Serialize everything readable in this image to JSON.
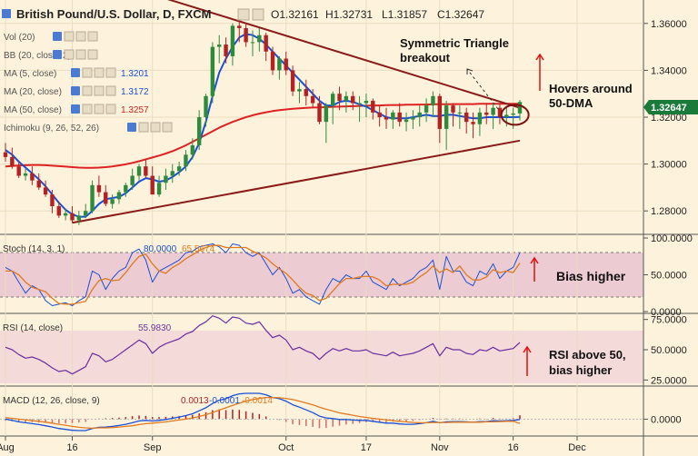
{
  "header": {
    "symbol_title": "British Pound/U.S. Dollar, D, FXCM",
    "ohlc": {
      "o": "O1.32161",
      "h": "H1.32731",
      "l": "L1.31857",
      "c": "C1.32647"
    }
  },
  "indicators": [
    {
      "label": "Vol (20)",
      "value": "",
      "color": "#999999"
    },
    {
      "label": "BB (20, close, 2)",
      "value": "",
      "color": "#999999"
    },
    {
      "label": "MA (5, close)",
      "value": "1.3201",
      "color": "#1a4fd6"
    },
    {
      "label": "MA (20, close)",
      "value": "1.3172",
      "color": "#1a4fd6"
    },
    {
      "label": "MA (50, close)",
      "value": "1.3257",
      "color": "#cc2222"
    },
    {
      "label": "Ichimoku (9, 26, 52, 26)",
      "value": "",
      "color": "#999999"
    }
  ],
  "annotations": {
    "triangle": "Symmetric Triangle\nbreakout",
    "hovers": "Hovers around\n50-DMA",
    "stoch_bias": "Bias higher",
    "rsi_note": "RSI above 50,\nbias higher"
  },
  "price_panel": {
    "y_ticks": [
      "1.36000",
      "1.34000",
      "1.32000",
      "1.30000",
      "1.28000"
    ],
    "last_price": "1.32647",
    "last_price_color": "#1a7a3a"
  },
  "stoch_panel": {
    "label": "Stoch (14, 3, 1)",
    "k_value": "80.0000",
    "d_value": "65.5674",
    "y_ticks": [
      "100.0000",
      "50.0000",
      "0.0000"
    ]
  },
  "rsi_panel": {
    "label": "RSI (14, close)",
    "value": "55.9830",
    "y_ticks": [
      "75.0000",
      "50.0000",
      "25.0000"
    ]
  },
  "macd_panel": {
    "label": "MACD (12, 26, close, 9)",
    "hist_value": "0.0013",
    "macd_value": "-0.0001",
    "signal_value": "-0.0014",
    "y_ticks": [
      "0.0000"
    ]
  },
  "x_axis": {
    "labels": [
      "Aug",
      "16",
      "Sep",
      "Oct",
      "17",
      "Nov",
      "16",
      "Dec"
    ]
  },
  "colors": {
    "background": "#fdf3dc",
    "bull": "#2e8b3e",
    "bear": "#b22222",
    "ma_fast": "#1a4fd6",
    "ma_slow": "#dd2222",
    "trendline": "#8b1a1a",
    "annotation_arrow": "#e01010",
    "stoch_band": "#eccbd2",
    "rsi_band": "#f5dada"
  },
  "chart_data": {
    "type": "candlestick",
    "x": [
      "Aug 2",
      "Aug 3",
      "Aug 6",
      "Aug 7",
      "Aug 8",
      "Aug 9",
      "Aug 10",
      "Aug 13",
      "Aug 14",
      "Aug 15",
      "Aug 16",
      "Aug 17",
      "Aug 20",
      "Aug 21",
      "Aug 22",
      "Aug 23",
      "Aug 24",
      "Aug 27",
      "Aug 28",
      "Aug 29",
      "Aug 30",
      "Aug 31",
      "Sep 3",
      "Sep 4",
      "Sep 5",
      "Sep 6",
      "Sep 7",
      "Sep 10",
      "Sep 11",
      "Sep 12",
      "Sep 13",
      "Sep 14",
      "Sep 17",
      "Sep 18",
      "Sep 19",
      "Sep 20",
      "Sep 21",
      "Sep 24",
      "Sep 25",
      "Sep 26",
      "Sep 27",
      "Sep 28",
      "Oct 1",
      "Oct 2",
      "Oct 3",
      "Oct 4",
      "Oct 5",
      "Oct 8",
      "Oct 9",
      "Oct 10",
      "Oct 11",
      "Oct 12",
      "Oct 15",
      "Oct 16",
      "Oct 17",
      "Oct 18",
      "Oct 19",
      "Oct 22",
      "Oct 23",
      "Oct 24",
      "Oct 25",
      "Oct 26",
      "Oct 29",
      "Oct 30",
      "Oct 31",
      "Nov 1",
      "Nov 2",
      "Nov 5",
      "Nov 6",
      "Nov 7",
      "Nov 8",
      "Nov 9",
      "Nov 12",
      "Nov 13",
      "Nov 14",
      "Nov 15",
      "Nov 16",
      "Nov 19"
    ],
    "open": [
      1.305,
      1.303,
      1.299,
      1.295,
      1.296,
      1.293,
      1.29,
      1.287,
      1.282,
      1.278,
      1.279,
      1.276,
      1.278,
      1.28,
      1.291,
      1.288,
      1.283,
      1.285,
      1.288,
      1.291,
      1.295,
      1.299,
      1.295,
      1.287,
      1.292,
      1.295,
      1.297,
      1.299,
      1.304,
      1.308,
      1.32,
      1.329,
      1.35,
      1.351,
      1.346,
      1.359,
      1.358,
      1.352,
      1.352,
      1.355,
      1.348,
      1.34,
      1.345,
      1.34,
      1.331,
      1.332,
      1.329,
      1.326,
      1.318,
      1.325,
      1.33,
      1.327,
      1.329,
      1.326,
      1.326,
      1.327,
      1.322,
      1.32,
      1.319,
      1.322,
      1.318,
      1.319,
      1.32,
      1.322,
      1.325,
      1.329,
      1.315,
      1.325,
      1.322,
      1.322,
      1.318,
      1.317,
      1.322,
      1.321,
      1.324,
      1.32,
      1.321,
      1.3216
    ],
    "high": [
      1.309,
      1.307,
      1.301,
      1.298,
      1.299,
      1.296,
      1.293,
      1.289,
      1.284,
      1.281,
      1.282,
      1.28,
      1.283,
      1.293,
      1.295,
      1.291,
      1.287,
      1.289,
      1.292,
      1.298,
      1.3,
      1.302,
      1.299,
      1.295,
      1.298,
      1.3,
      1.301,
      1.306,
      1.311,
      1.323,
      1.33,
      1.352,
      1.355,
      1.354,
      1.36,
      1.362,
      1.36,
      1.357,
      1.358,
      1.356,
      1.35,
      1.346,
      1.348,
      1.342,
      1.335,
      1.336,
      1.332,
      1.329,
      1.326,
      1.331,
      1.333,
      1.331,
      1.331,
      1.329,
      1.33,
      1.328,
      1.325,
      1.324,
      1.323,
      1.326,
      1.322,
      1.323,
      1.325,
      1.328,
      1.331,
      1.33,
      1.327,
      1.326,
      1.325,
      1.324,
      1.322,
      1.324,
      1.326,
      1.326,
      1.326,
      1.324,
      1.324,
      1.3273
    ],
    "low": [
      1.301,
      1.298,
      1.294,
      1.293,
      1.291,
      1.289,
      1.286,
      1.279,
      1.277,
      1.276,
      1.275,
      1.274,
      1.277,
      1.279,
      1.286,
      1.282,
      1.281,
      1.283,
      1.286,
      1.289,
      1.293,
      1.294,
      1.287,
      1.286,
      1.289,
      1.292,
      1.295,
      1.297,
      1.302,
      1.306,
      1.316,
      1.326,
      1.343,
      1.343,
      1.342,
      1.352,
      1.35,
      1.346,
      1.348,
      1.344,
      1.338,
      1.336,
      1.338,
      1.329,
      1.326,
      1.325,
      1.324,
      1.317,
      1.309,
      1.317,
      1.323,
      1.322,
      1.323,
      1.318,
      1.32,
      1.319,
      1.316,
      1.315,
      1.315,
      1.316,
      1.314,
      1.315,
      1.316,
      1.318,
      1.32,
      1.309,
      1.306,
      1.316,
      1.315,
      1.313,
      1.311,
      1.312,
      1.317,
      1.315,
      1.317,
      1.316,
      1.315,
      1.3186
    ],
    "close": [
      1.303,
      1.299,
      1.295,
      1.296,
      1.293,
      1.29,
      1.287,
      1.282,
      1.278,
      1.279,
      1.276,
      1.278,
      1.28,
      1.291,
      1.288,
      1.283,
      1.285,
      1.288,
      1.291,
      1.295,
      1.299,
      1.295,
      1.287,
      1.292,
      1.295,
      1.297,
      1.299,
      1.304,
      1.308,
      1.32,
      1.329,
      1.35,
      1.351,
      1.346,
      1.359,
      1.358,
      1.352,
      1.352,
      1.355,
      1.348,
      1.34,
      1.345,
      1.34,
      1.331,
      1.332,
      1.329,
      1.326,
      1.318,
      1.325,
      1.33,
      1.327,
      1.329,
      1.326,
      1.326,
      1.327,
      1.322,
      1.32,
      1.319,
      1.322,
      1.318,
      1.319,
      1.32,
      1.322,
      1.325,
      1.329,
      1.315,
      1.325,
      1.322,
      1.322,
      1.318,
      1.317,
      1.322,
      1.321,
      1.324,
      1.32,
      1.321,
      1.3216,
      1.3265
    ],
    "ma_fast": [
      1.306,
      1.304,
      1.301,
      1.2985,
      1.296,
      1.2935,
      1.2905,
      1.287,
      1.2835,
      1.2805,
      1.2785,
      1.2775,
      1.2775,
      1.28,
      1.283,
      1.285,
      1.2855,
      1.286,
      1.2875,
      1.29,
      1.2925,
      1.294,
      1.2935,
      1.2925,
      1.293,
      1.2945,
      1.2965,
      1.299,
      1.303,
      1.309,
      1.318,
      1.329,
      1.339,
      1.345,
      1.35,
      1.354,
      1.3555,
      1.355,
      1.3535,
      1.351,
      1.348,
      1.345,
      1.342,
      1.339,
      1.336,
      1.333,
      1.33,
      1.327,
      1.325,
      1.325,
      1.3265,
      1.327,
      1.3265,
      1.3255,
      1.3245,
      1.323,
      1.3215,
      1.32,
      1.3195,
      1.3195,
      1.3195,
      1.32,
      1.3205,
      1.321,
      1.3205,
      1.3205,
      1.321,
      1.321,
      1.3205,
      1.32,
      1.3195,
      1.3195,
      1.32,
      1.32,
      1.32,
      1.32,
      1.32,
      1.3201
    ],
    "ma_slow": [
      1.299,
      1.2992,
      1.2994,
      1.2995,
      1.2996,
      1.2996,
      1.2995,
      1.2993,
      1.2991,
      1.2989,
      1.2987,
      1.2985,
      1.2984,
      1.2984,
      1.2985,
      1.2987,
      1.299,
      1.2994,
      1.2999,
      1.3005,
      1.3012,
      1.302,
      1.3028,
      1.3036,
      1.3045,
      1.3055,
      1.3067,
      1.308,
      1.3095,
      1.311,
      1.3125,
      1.314,
      1.3155,
      1.3168,
      1.318,
      1.319,
      1.32,
      1.3208,
      1.3215,
      1.3221,
      1.3226,
      1.323,
      1.3233,
      1.3236,
      1.3238,
      1.324,
      1.3241,
      1.3242,
      1.3243,
      1.3244,
      1.3245,
      1.3246,
      1.3247,
      1.3248,
      1.3249,
      1.325,
      1.325,
      1.3251,
      1.3252,
      1.3252,
      1.3253,
      1.3253,
      1.3254,
      1.3254,
      1.3255,
      1.3255,
      1.3255,
      1.3256,
      1.3256,
      1.3256,
      1.3256,
      1.3257,
      1.3257,
      1.3257,
      1.3257,
      1.3257,
      1.3257,
      1.3257
    ],
    "stoch_k": [
      60,
      55,
      40,
      25,
      35,
      30,
      15,
      8,
      10,
      12,
      8,
      15,
      20,
      55,
      50,
      30,
      45,
      55,
      60,
      80,
      85,
      70,
      40,
      55,
      60,
      65,
      70,
      80,
      82,
      88,
      90,
      92,
      88,
      80,
      92,
      90,
      80,
      75,
      80,
      65,
      50,
      60,
      45,
      25,
      30,
      20,
      15,
      10,
      30,
      45,
      40,
      50,
      45,
      45,
      55,
      40,
      35,
      30,
      45,
      35,
      40,
      45,
      55,
      60,
      70,
      30,
      75,
      55,
      55,
      40,
      35,
      55,
      50,
      65,
      45,
      55,
      60,
      80
    ],
    "stoch_d": [
      55,
      55,
      50,
      40,
      33,
      30,
      27,
      18,
      11,
      10,
      10,
      12,
      14,
      30,
      42,
      45,
      42,
      43,
      53,
      65,
      75,
      78,
      65,
      55,
      52,
      60,
      65,
      72,
      77,
      83,
      87,
      90,
      90,
      87,
      87,
      87,
      87,
      82,
      78,
      73,
      65,
      58,
      52,
      43,
      33,
      25,
      22,
      15,
      18,
      28,
      38,
      45,
      45,
      47,
      48,
      47,
      43,
      35,
      37,
      37,
      37,
      40,
      47,
      53,
      62,
      53,
      58,
      53,
      62,
      50,
      43,
      43,
      47,
      57,
      53,
      55,
      53,
      66
    ],
    "rsi": [
      52,
      50,
      46,
      43,
      44,
      42,
      39,
      35,
      32,
      33,
      30,
      33,
      36,
      47,
      45,
      40,
      42,
      46,
      50,
      54,
      58,
      55,
      47,
      52,
      55,
      57,
      59,
      63,
      65,
      70,
      73,
      78,
      76,
      72,
      77,
      76,
      72,
      71,
      73,
      66,
      60,
      62,
      58,
      50,
      52,
      49,
      47,
      42,
      47,
      51,
      49,
      51,
      49,
      49,
      50,
      47,
      46,
      45,
      48,
      45,
      46,
      47,
      49,
      52,
      55,
      45,
      52,
      50,
      50,
      47,
      46,
      50,
      49,
      52,
      49,
      50,
      51,
      56
    ],
    "macd": [
      0.0,
      -0.0004,
      -0.0009,
      -0.0012,
      -0.0015,
      -0.0018,
      -0.0022,
      -0.0026,
      -0.0031,
      -0.0034,
      -0.0037,
      -0.0038,
      -0.0038,
      -0.0031,
      -0.0027,
      -0.0026,
      -0.0024,
      -0.0021,
      -0.0017,
      -0.0012,
      -0.0006,
      -0.0004,
      -0.0006,
      -0.0004,
      -0.0001,
      0.0003,
      0.0007,
      0.0012,
      0.0018,
      0.0028,
      0.0038,
      0.0052,
      0.0063,
      0.0068,
      0.0078,
      0.0084,
      0.0086,
      0.0086,
      0.0086,
      0.0081,
      0.0072,
      0.0068,
      0.006,
      0.0048,
      0.004,
      0.0031,
      0.0022,
      0.001,
      0.0004,
      0.0002,
      -0.0001,
      -0.0001,
      -0.0003,
      -0.0004,
      -0.0004,
      -0.0007,
      -0.001,
      -0.0013,
      -0.0013,
      -0.0016,
      -0.0017,
      -0.0017,
      -0.0015,
      -0.0012,
      -0.0007,
      -0.0012,
      -0.0009,
      -0.0008,
      -0.0008,
      -0.0009,
      -0.001,
      -0.0008,
      -0.0008,
      -0.0005,
      -0.0006,
      -0.0005,
      -0.0004,
      -0.0001
    ],
    "macd_signal": [
      0.0005,
      0.0003,
      0.0,
      -0.0002,
      -0.0005,
      -0.0007,
      -0.001,
      -0.0013,
      -0.0017,
      -0.002,
      -0.0024,
      -0.0027,
      -0.0029,
      -0.003,
      -0.0029,
      -0.0029,
      -0.0028,
      -0.0026,
      -0.0024,
      -0.0022,
      -0.0018,
      -0.0015,
      -0.0013,
      -0.0011,
      -0.0009,
      -0.0006,
      -0.0003,
      0.0,
      0.0004,
      0.0009,
      0.0015,
      0.0022,
      0.003,
      0.0038,
      0.0046,
      0.0053,
      0.006,
      0.0065,
      0.0069,
      0.0072,
      0.0072,
      0.0071,
      0.0069,
      0.0065,
      0.006,
      0.0054,
      0.0048,
      0.004,
      0.0033,
      0.0027,
      0.0021,
      0.0017,
      0.0013,
      0.0009,
      0.0006,
      0.0003,
      0.0,
      -0.0002,
      -0.0005,
      -0.0007,
      -0.0009,
      -0.0011,
      -0.0012,
      -0.0012,
      -0.0011,
      -0.0011,
      -0.0011,
      -0.001,
      -0.001,
      -0.001,
      -0.001,
      -0.001,
      -0.0009,
      -0.0009,
      -0.0008,
      -0.0007,
      -0.0007,
      -0.0014
    ],
    "triangle_upper": {
      "from": [
        "Aug 29",
        1.375
      ],
      "to": [
        "Nov 19",
        1.324
      ]
    },
    "triangle_lower": {
      "from": [
        "Aug 20",
        1.276
      ],
      "to": [
        "Nov 19",
        1.31
      ]
    },
    "price_ylim": [
      1.27,
      1.37
    ],
    "stoch_ylim": [
      0,
      100
    ],
    "rsi_ylim": [
      20,
      80
    ],
    "macd_ylim": [
      -0.005,
      0.0095
    ]
  }
}
